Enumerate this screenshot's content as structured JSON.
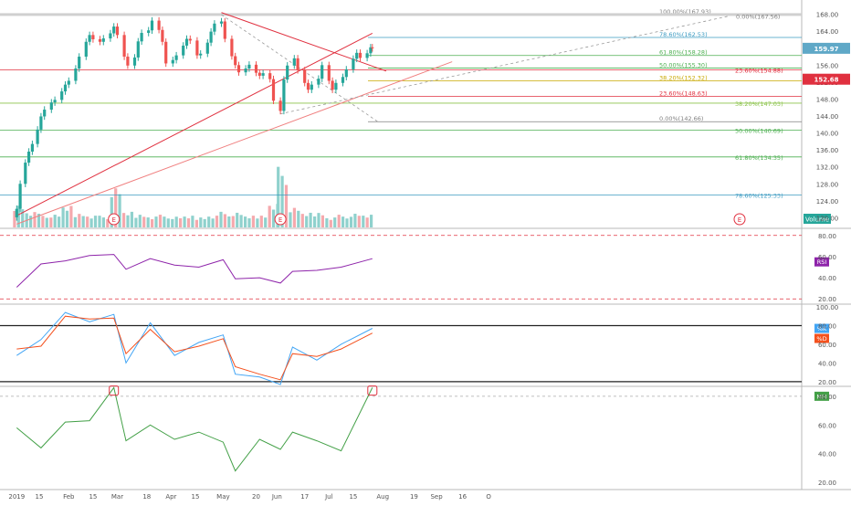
{
  "chart_data": [
    {
      "type": "candlestick",
      "pane": "price",
      "ylim": [
        117.5,
        170.5
      ],
      "yticks": [
        120,
        124,
        128,
        132,
        136,
        140,
        144,
        148,
        152,
        156,
        160,
        164,
        168
      ],
      "ytick_labels": [
        "120.00",
        "124.00",
        "128.00",
        "132.00",
        "136.00",
        "140.00",
        "144.00",
        "148.00",
        "152.00",
        "156.00",
        "160.00",
        "164.00",
        "168.00"
      ],
      "x_tick_labels": [
        "2019",
        "15",
        "Feb",
        "15",
        "Mar",
        "18",
        "Apr",
        "15",
        "May",
        "20",
        "Jun",
        "17",
        "Jul",
        "15",
        "Aug",
        "19",
        "Sep",
        "16",
        "O"
      ],
      "price_tags": [
        {
          "label": "159.97",
          "value": 159.97,
          "color": "#5fa8c7"
        },
        {
          "label": "152.68",
          "value": 152.68,
          "color": "#e0303f"
        }
      ],
      "volume_label": "Volume",
      "earnings_marker": "E",
      "fib_retracement_1": [
        {
          "label": "78.60%(125.33)",
          "value": 125.33,
          "color": "#3d9bc2"
        },
        {
          "label": "61.80%(134.35)",
          "value": 134.35,
          "color": "#4caf50"
        },
        {
          "label": "50.00%(140.69)",
          "value": 140.69,
          "color": "#4caf50"
        },
        {
          "label": "38.20%(147.03)",
          "value": 147.03,
          "color": "#8bc34a"
        },
        {
          "label": "23.60%(154.88)",
          "value": 154.88,
          "color": "#e0303f"
        }
      ],
      "fib_retracement_2": [
        {
          "label": "100.00%(167.93)",
          "value": 167.93,
          "color": "#808080"
        },
        {
          "label": "78.60%(162.53)",
          "value": 162.53,
          "color": "#3d9bc2"
        },
        {
          "label": "61.80%(158.28)",
          "value": 158.28,
          "color": "#4caf50"
        },
        {
          "label": "50.00%(155.30)",
          "value": 155.3,
          "color": "#4caf50"
        },
        {
          "label": "38.20%(152.32)",
          "value": 152.32,
          "color": "#c8a800"
        },
        {
          "label": "23.60%(148.63)",
          "value": 148.63,
          "color": "#e0303f"
        },
        {
          "label": "0.00%(142.66)",
          "value": 142.66,
          "color": "#808080"
        }
      ],
      "dashed_projection_label": "0.00%(167.56)",
      "series": [
        {
          "name": "close",
          "values": [
            {
              "x": "2019-01-02",
              "y": 122.1
            },
            {
              "x": "2019-01-04",
              "y": 128.0
            },
            {
              "x": "2019-01-07",
              "y": 133.0
            },
            {
              "x": "2019-01-09",
              "y": 135.6
            },
            {
              "x": "2019-01-11",
              "y": 137.4
            },
            {
              "x": "2019-01-14",
              "y": 140.8
            },
            {
              "x": "2019-01-16",
              "y": 143.9
            },
            {
              "x": "2019-01-18",
              "y": 145.5
            },
            {
              "x": "2019-01-22",
              "y": 147.2
            },
            {
              "x": "2019-01-24",
              "y": 147.8
            },
            {
              "x": "2019-01-28",
              "y": 149.8
            },
            {
              "x": "2019-01-30",
              "y": 151.4
            },
            {
              "x": "2019-02-01",
              "y": 152.3
            },
            {
              "x": "2019-02-05",
              "y": 155.2
            },
            {
              "x": "2019-02-07",
              "y": 158.0
            },
            {
              "x": "2019-02-11",
              "y": 161.5
            },
            {
              "x": "2019-02-13",
              "y": 163.1
            },
            {
              "x": "2019-02-15",
              "y": 162.1
            },
            {
              "x": "2019-02-19",
              "y": 161.5
            },
            {
              "x": "2019-02-21",
              "y": 162.3
            },
            {
              "x": "2019-02-25",
              "y": 163.5
            },
            {
              "x": "2019-02-27",
              "y": 165.1
            },
            {
              "x": "2019-03-01",
              "y": 163.1
            },
            {
              "x": "2019-03-05",
              "y": 158.0
            },
            {
              "x": "2019-03-07",
              "y": 155.9
            },
            {
              "x": "2019-03-11",
              "y": 157.8
            },
            {
              "x": "2019-03-13",
              "y": 161.6
            },
            {
              "x": "2019-03-15",
              "y": 163.6
            },
            {
              "x": "2019-03-19",
              "y": 164.2
            },
            {
              "x": "2019-03-21",
              "y": 166.5
            },
            {
              "x": "2019-03-25",
              "y": 164.3
            },
            {
              "x": "2019-03-27",
              "y": 161.5
            },
            {
              "x": "2019-03-29",
              "y": 156.4
            },
            {
              "x": "2019-04-02",
              "y": 157.2
            },
            {
              "x": "2019-04-04",
              "y": 158.3
            },
            {
              "x": "2019-04-08",
              "y": 160.6
            },
            {
              "x": "2019-04-10",
              "y": 162.2
            },
            {
              "x": "2019-04-12",
              "y": 161.8
            },
            {
              "x": "2019-04-16",
              "y": 158.3
            },
            {
              "x": "2019-04-18",
              "y": 158.7
            },
            {
              "x": "2019-04-22",
              "y": 161.3
            },
            {
              "x": "2019-04-24",
              "y": 163.9
            },
            {
              "x": "2019-04-26",
              "y": 165.8
            },
            {
              "x": "2019-04-30",
              "y": 166.3
            },
            {
              "x": "2019-05-02",
              "y": 162.2
            },
            {
              "x": "2019-05-06",
              "y": 158.1
            },
            {
              "x": "2019-05-08",
              "y": 156.0
            },
            {
              "x": "2019-05-10",
              "y": 154.3
            },
            {
              "x": "2019-05-14",
              "y": 155.2
            },
            {
              "x": "2019-05-16",
              "y": 156.1
            },
            {
              "x": "2019-05-20",
              "y": 154.2
            },
            {
              "x": "2019-05-22",
              "y": 153.5
            },
            {
              "x": "2019-05-24",
              "y": 154.1
            },
            {
              "x": "2019-05-28",
              "y": 152.7
            },
            {
              "x": "2019-05-30",
              "y": 147.6
            },
            {
              "x": "2019-06-03",
              "y": 145.2
            },
            {
              "x": "2019-06-05",
              "y": 152.6
            },
            {
              "x": "2019-06-07",
              "y": 155.9
            },
            {
              "x": "2019-06-11",
              "y": 157.6
            },
            {
              "x": "2019-06-13",
              "y": 154.8
            },
            {
              "x": "2019-06-17",
              "y": 151.8
            },
            {
              "x": "2019-06-19",
              "y": 150.2
            },
            {
              "x": "2019-06-21",
              "y": 151.4
            },
            {
              "x": "2019-06-25",
              "y": 152.8
            },
            {
              "x": "2019-06-27",
              "y": 156.0
            },
            {
              "x": "2019-07-01",
              "y": 152.3
            },
            {
              "x": "2019-07-03",
              "y": 150.2
            },
            {
              "x": "2019-07-05",
              "y": 151.8
            },
            {
              "x": "2019-07-09",
              "y": 153.2
            },
            {
              "x": "2019-07-11",
              "y": 155.0
            },
            {
              "x": "2019-07-15",
              "y": 157.5
            },
            {
              "x": "2019-07-17",
              "y": 158.9
            },
            {
              "x": "2019-07-19",
              "y": 157.7
            },
            {
              "x": "2019-07-23",
              "y": 158.8
            },
            {
              "x": "2019-07-25",
              "y": 160.2
            },
            {
              "x": "2019-07-26",
              "y": 159.97
            }
          ]
        },
        {
          "name": "volume",
          "values": [
            {
              "x": "2019-01-02",
              "y": 24
            },
            {
              "x": "2019-01-09",
              "y": 17
            },
            {
              "x": "2019-01-16",
              "y": 14
            },
            {
              "x": "2019-01-23",
              "y": 13
            },
            {
              "x": "2019-01-30",
              "y": 22
            },
            {
              "x": "2019-02-06",
              "y": 15
            },
            {
              "x": "2019-02-13",
              "y": 13
            },
            {
              "x": "2019-02-20",
              "y": 12
            },
            {
              "x": "2019-02-27",
              "y": 40
            },
            {
              "x": "2019-03-06",
              "y": 16
            },
            {
              "x": "2019-03-13",
              "y": 14
            },
            {
              "x": "2019-03-20",
              "y": 12
            },
            {
              "x": "2019-03-27",
              "y": 13
            },
            {
              "x": "2019-04-03",
              "y": 11
            },
            {
              "x": "2019-04-10",
              "y": 12
            },
            {
              "x": "2019-04-17",
              "y": 11
            },
            {
              "x": "2019-04-24",
              "y": 13
            },
            {
              "x": "2019-05-01",
              "y": 16
            },
            {
              "x": "2019-05-08",
              "y": 15
            },
            {
              "x": "2019-05-15",
              "y": 12
            },
            {
              "x": "2019-05-22",
              "y": 13
            },
            {
              "x": "2019-05-29",
              "y": 26
            },
            {
              "x": "2019-06-03",
              "y": 62
            },
            {
              "x": "2019-06-10",
              "y": 20
            },
            {
              "x": "2019-06-17",
              "y": 15
            },
            {
              "x": "2019-06-24",
              "y": 16
            },
            {
              "x": "2019-07-01",
              "y": 11
            },
            {
              "x": "2019-07-08",
              "y": 13
            },
            {
              "x": "2019-07-15",
              "y": 14
            },
            {
              "x": "2019-07-22",
              "y": 13
            }
          ]
        }
      ]
    },
    {
      "type": "line",
      "pane": "rsi",
      "badge": "RSI",
      "ylim": [
        15,
        85
      ],
      "yticks": [
        20,
        40,
        60,
        80
      ],
      "ytick_labels": [
        "20.00",
        "40.00",
        "60.00",
        "80.00"
      ],
      "bands": [
        20,
        80
      ],
      "series": [
        {
          "name": "RSI",
          "color": "#8e24aa",
          "values": [
            {
              "x": "2019-01-02",
              "y": 31
            },
            {
              "x": "2019-01-16",
              "y": 53
            },
            {
              "x": "2019-01-30",
              "y": 56
            },
            {
              "x": "2019-02-13",
              "y": 61
            },
            {
              "x": "2019-02-27",
              "y": 62
            },
            {
              "x": "2019-03-06",
              "y": 48
            },
            {
              "x": "2019-03-20",
              "y": 58
            },
            {
              "x": "2019-04-03",
              "y": 52
            },
            {
              "x": "2019-04-17",
              "y": 50
            },
            {
              "x": "2019-05-01",
              "y": 57
            },
            {
              "x": "2019-05-08",
              "y": 39
            },
            {
              "x": "2019-05-22",
              "y": 40
            },
            {
              "x": "2019-06-03",
              "y": 35
            },
            {
              "x": "2019-06-10",
              "y": 46
            },
            {
              "x": "2019-06-24",
              "y": 47
            },
            {
              "x": "2019-07-08",
              "y": 50
            },
            {
              "x": "2019-07-26",
              "y": 58
            }
          ]
        }
      ]
    },
    {
      "type": "line",
      "pane": "stochastic",
      "badges": [
        "%K",
        "%D"
      ],
      "ylim": [
        15,
        100
      ],
      "yticks": [
        20,
        40,
        60,
        80,
        100
      ],
      "ytick_labels": [
        "20.00",
        "40.00",
        "60.00",
        "80.00",
        "100.00"
      ],
      "bands": [
        20,
        80
      ],
      "series": [
        {
          "name": "%K",
          "color": "#42a5f5",
          "values": [
            {
              "x": "2019-01-02",
              "y": 48
            },
            {
              "x": "2019-01-16",
              "y": 65
            },
            {
              "x": "2019-01-30",
              "y": 94
            },
            {
              "x": "2019-02-13",
              "y": 84
            },
            {
              "x": "2019-02-27",
              "y": 92
            },
            {
              "x": "2019-03-06",
              "y": 40
            },
            {
              "x": "2019-03-20",
              "y": 83
            },
            {
              "x": "2019-04-03",
              "y": 48
            },
            {
              "x": "2019-04-17",
              "y": 62
            },
            {
              "x": "2019-05-01",
              "y": 70
            },
            {
              "x": "2019-05-08",
              "y": 28
            },
            {
              "x": "2019-05-22",
              "y": 25
            },
            {
              "x": "2019-06-03",
              "y": 17
            },
            {
              "x": "2019-06-10",
              "y": 57
            },
            {
              "x": "2019-06-24",
              "y": 43
            },
            {
              "x": "2019-07-08",
              "y": 60
            },
            {
              "x": "2019-07-26",
              "y": 77
            }
          ]
        },
        {
          "name": "%D",
          "color": "#f4511e",
          "values": [
            {
              "x": "2019-01-02",
              "y": 55
            },
            {
              "x": "2019-01-16",
              "y": 58
            },
            {
              "x": "2019-01-30",
              "y": 90
            },
            {
              "x": "2019-02-13",
              "y": 87
            },
            {
              "x": "2019-02-27",
              "y": 88
            },
            {
              "x": "2019-03-06",
              "y": 50
            },
            {
              "x": "2019-03-20",
              "y": 76
            },
            {
              "x": "2019-04-03",
              "y": 52
            },
            {
              "x": "2019-04-17",
              "y": 58
            },
            {
              "x": "2019-05-01",
              "y": 66
            },
            {
              "x": "2019-05-08",
              "y": 36
            },
            {
              "x": "2019-05-22",
              "y": 28
            },
            {
              "x": "2019-06-03",
              "y": 22
            },
            {
              "x": "2019-06-10",
              "y": 50
            },
            {
              "x": "2019-06-24",
              "y": 47
            },
            {
              "x": "2019-07-08",
              "y": 55
            },
            {
              "x": "2019-07-26",
              "y": 72
            }
          ]
        }
      ]
    },
    {
      "type": "line",
      "pane": "mfi",
      "badge": "MFI",
      "ylim": [
        15,
        85
      ],
      "yticks": [
        20,
        40,
        60,
        80
      ],
      "ytick_labels": [
        "20.00",
        "40.00",
        "60.00",
        "80.00"
      ],
      "series": [
        {
          "name": "MFI",
          "color": "#43a047",
          "values": [
            {
              "x": "2019-01-02",
              "y": 58
            },
            {
              "x": "2019-01-16",
              "y": 44
            },
            {
              "x": "2019-01-30",
              "y": 62
            },
            {
              "x": "2019-02-13",
              "y": 63
            },
            {
              "x": "2019-02-27",
              "y": 86
            },
            {
              "x": "2019-03-06",
              "y": 49
            },
            {
              "x": "2019-03-20",
              "y": 60
            },
            {
              "x": "2019-04-03",
              "y": 50
            },
            {
              "x": "2019-04-17",
              "y": 55
            },
            {
              "x": "2019-05-01",
              "y": 48
            },
            {
              "x": "2019-05-08",
              "y": 28
            },
            {
              "x": "2019-05-22",
              "y": 50
            },
            {
              "x": "2019-06-03",
              "y": 43
            },
            {
              "x": "2019-06-10",
              "y": 55
            },
            {
              "x": "2019-06-24",
              "y": 49
            },
            {
              "x": "2019-07-08",
              "y": 42
            },
            {
              "x": "2019-07-26",
              "y": 86
            }
          ]
        }
      ]
    }
  ]
}
